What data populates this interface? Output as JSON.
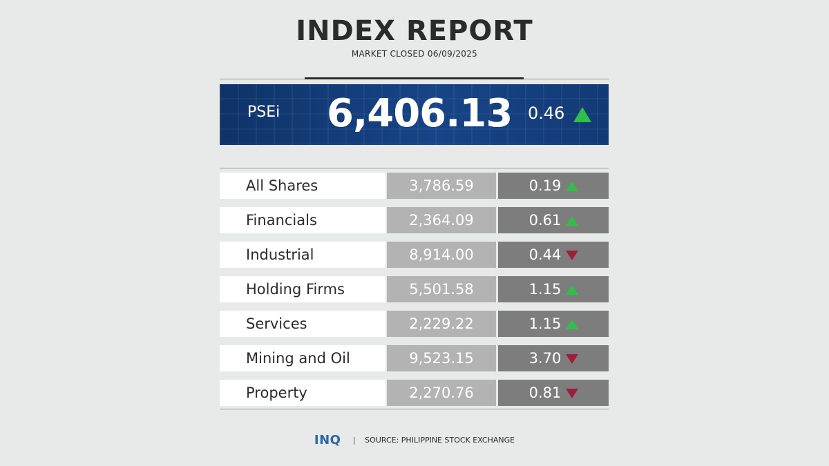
{
  "header": {
    "title": "INDEX REPORT",
    "subtitle": "MARKET CLOSED 06/09/2025"
  },
  "main_index": {
    "label": "PSEi",
    "value": "6,406.13",
    "change": "0.46",
    "direction": "up"
  },
  "colors": {
    "up": "#2fbf4a",
    "down": "#a11d3c",
    "banner": "#174487",
    "logo": "#2a69a8"
  },
  "rows": [
    {
      "name": "All Shares",
      "value": "3,786.59",
      "change": "0.19",
      "direction": "up"
    },
    {
      "name": "Financials",
      "value": "2,364.09",
      "change": "0.61",
      "direction": "up"
    },
    {
      "name": "Industrial",
      "value": "8,914.00",
      "change": "0.44",
      "direction": "down"
    },
    {
      "name": "Holding Firms",
      "value": "5,501.58",
      "change": "1.15",
      "direction": "up"
    },
    {
      "name": "Services",
      "value": "2,229.22",
      "change": "1.15",
      "direction": "up"
    },
    {
      "name": "Mining and Oil",
      "value": "9,523.15",
      "change": "3.70",
      "direction": "down"
    },
    {
      "name": "Property",
      "value": "2,270.76",
      "change": "0.81",
      "direction": "down"
    }
  ],
  "footer": {
    "logo": "INQ",
    "separator": "|",
    "source": "SOURCE: PHILIPPINE STOCK EXCHANGE"
  }
}
